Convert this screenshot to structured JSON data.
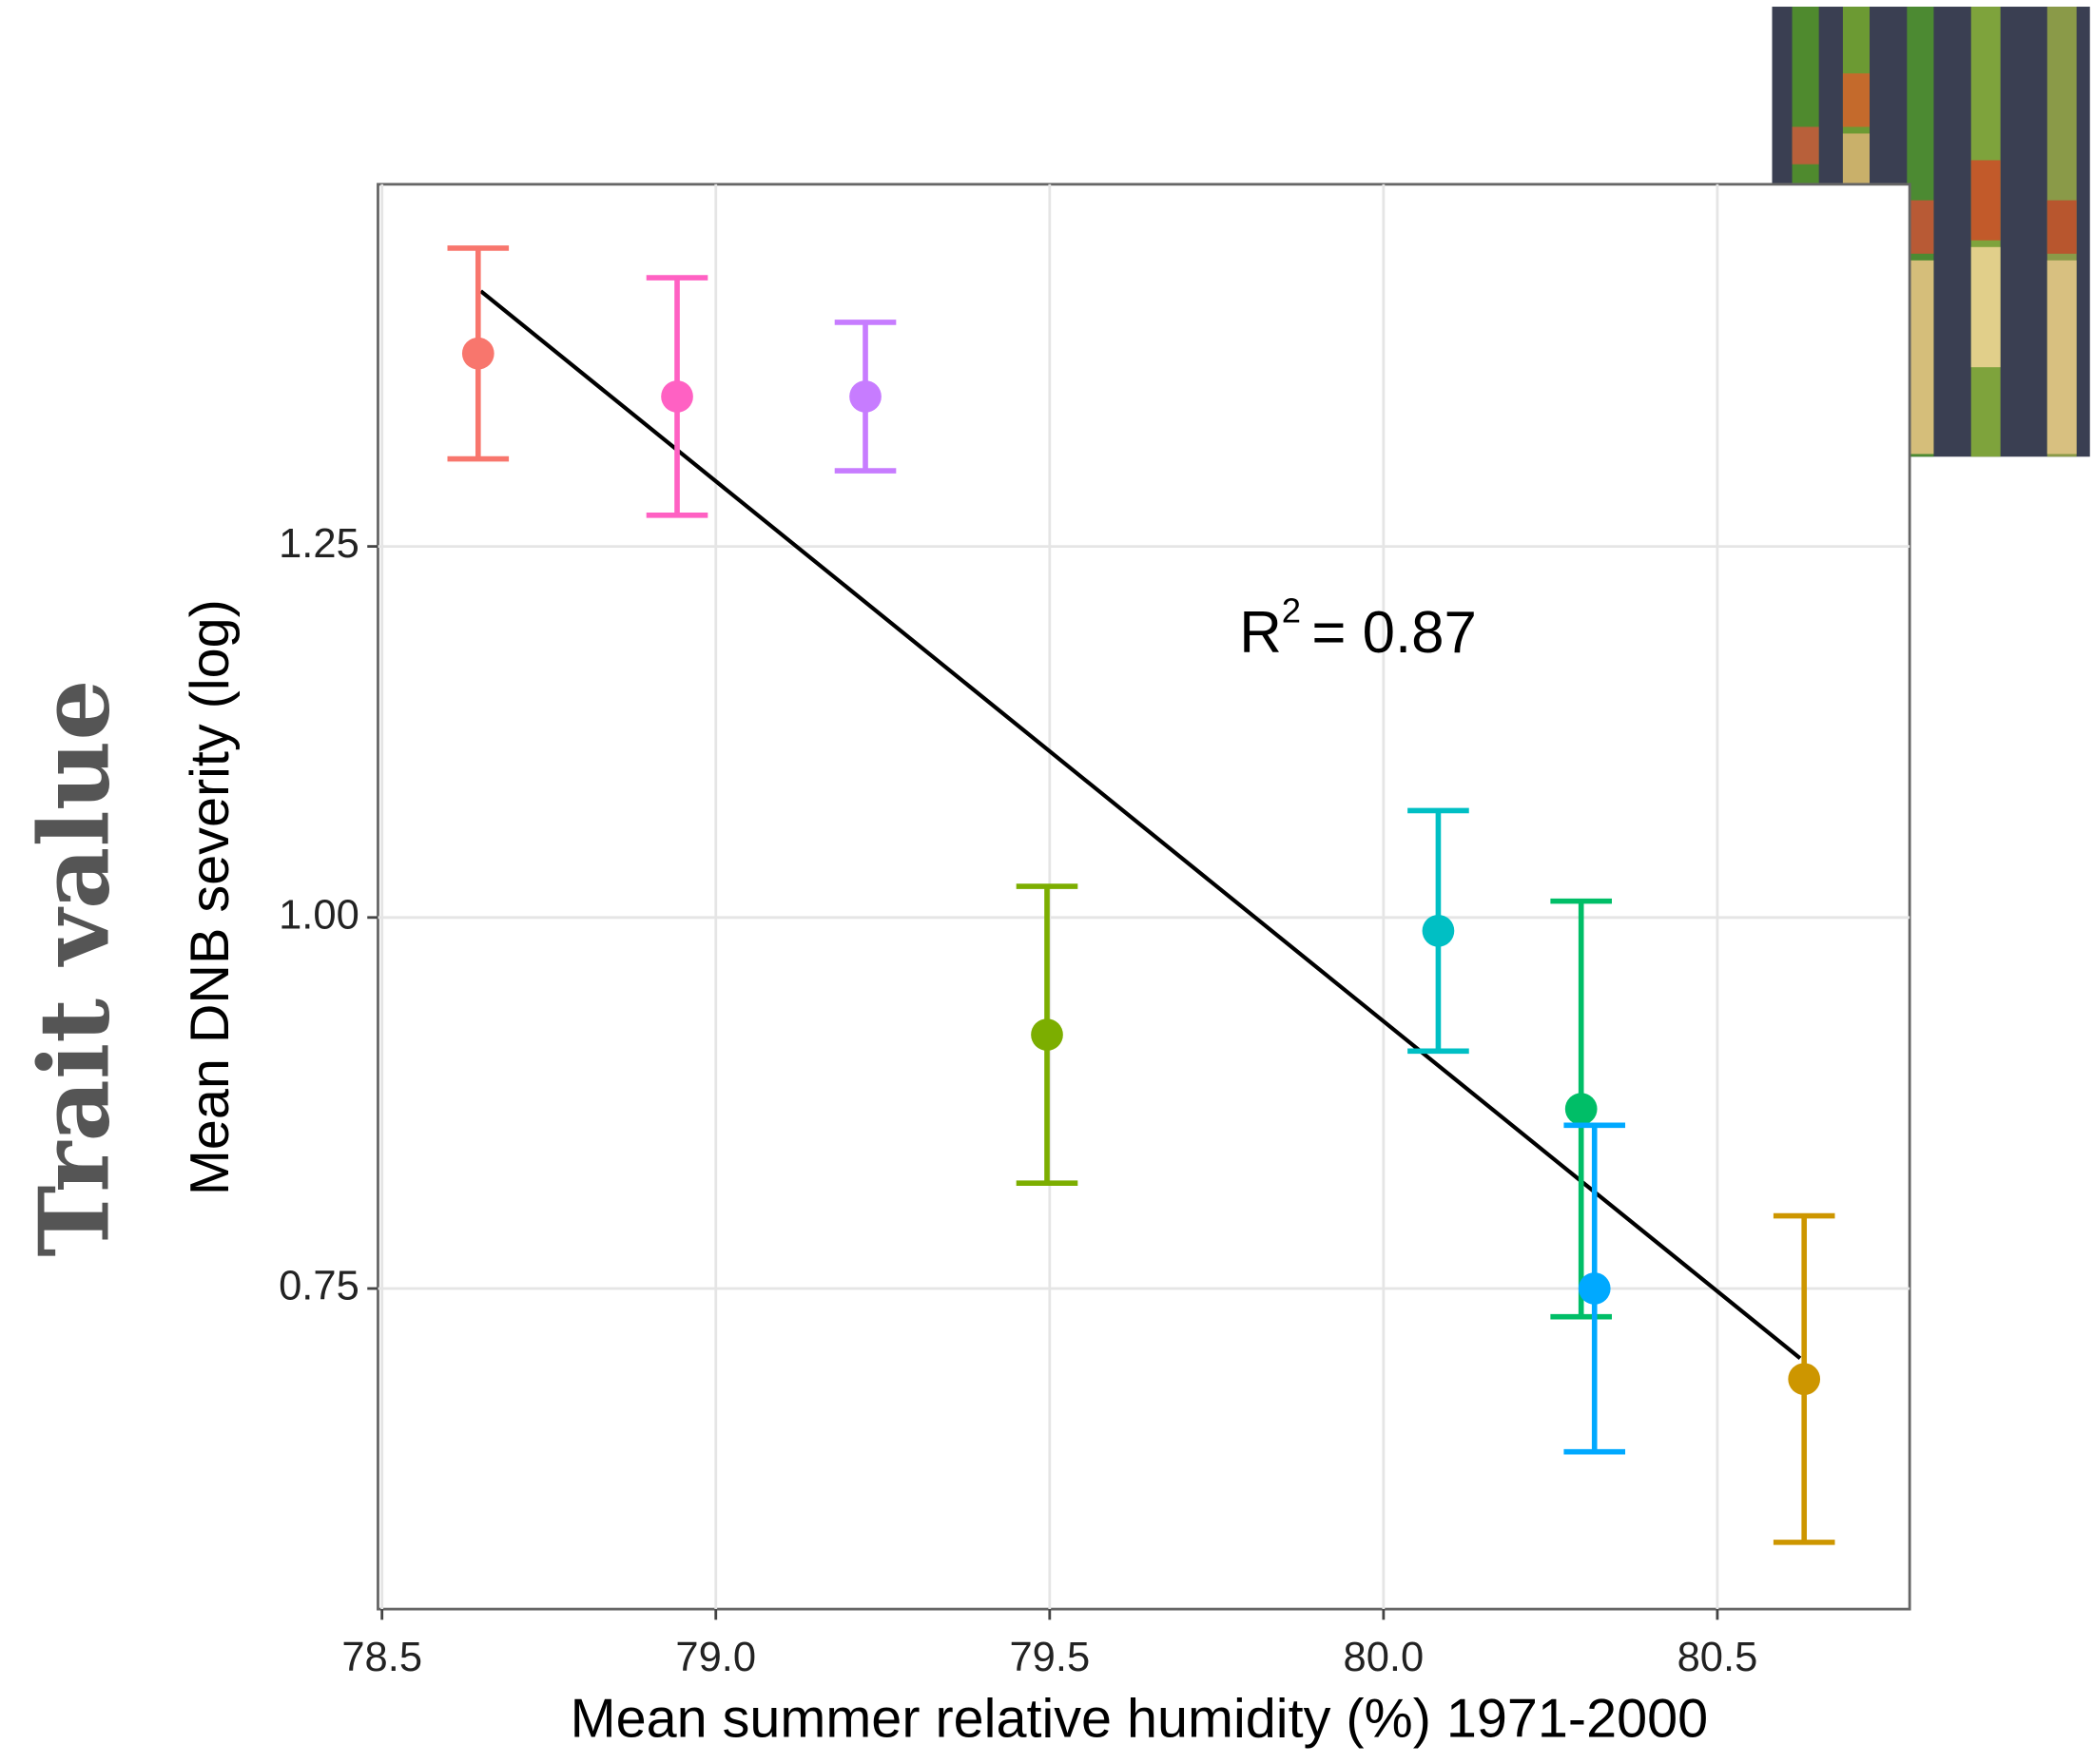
{
  "chart_data": {
    "type": "errorbar-scatter",
    "x_label": "Mean summer relative humidity (%) 1971-2000",
    "y_label": "Mean DNB severity (log)",
    "side_label": "Trait value",
    "annotation": {
      "text": "R",
      "superscript": "2",
      "rest": "= 0.87"
    },
    "x": [
      78.644,
      78.942,
      79.224,
      79.496,
      80.082,
      80.296,
      80.316,
      80.63
    ],
    "values": [
      1.38,
      1.351,
      1.351,
      0.921,
      0.991,
      0.871,
      0.75,
      0.689
    ],
    "errors": [
      0.071,
      0.08,
      0.05,
      0.1,
      0.081,
      0.14,
      0.11,
      0.11
    ],
    "colors": [
      "#F8766D",
      "#FF61C3",
      "#C77CFF",
      "#7CAE00",
      "#00BFC4",
      "#00BE67",
      "#00A9FF",
      "#CD9600"
    ],
    "fit_line": {
      "x": [
        78.648,
        80.624
      ],
      "values": [
        1.422,
        0.703
      ],
      "color": "#000000"
    },
    "xlim": [
      78.494,
      80.788
    ],
    "ylim": [
      0.534,
      1.494
    ],
    "xticks": [
      78.5,
      {
        "value": 79,
        "label": "79.0"
      },
      79.5,
      {
        "value": 80,
        "label": "80.0"
      },
      80.5
    ],
    "yticks": [
      0.75,
      {
        "value": 1,
        "label": "1.00"
      },
      1.25
    ],
    "grid": true
  }
}
